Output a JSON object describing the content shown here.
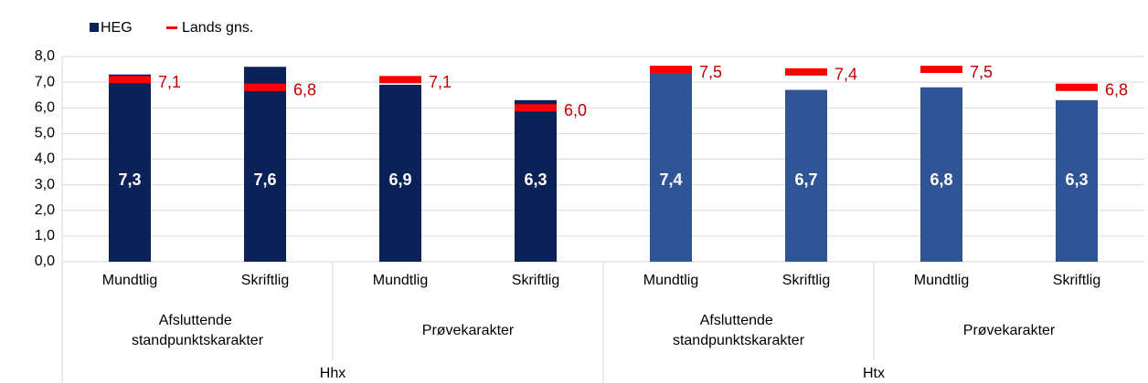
{
  "chart_data": {
    "type": "bar",
    "categories": [
      "Mundtlig",
      "Skriftlig",
      "Mundtlig",
      "Skriftlig",
      "Mundtlig",
      "Skriftlig",
      "Mundtlig",
      "Skriftlig"
    ],
    "category_groups": [
      [
        "Afsluttende standpunktskarakter",
        "Prøvekarakter",
        "Afsluttende standpunktskarakter",
        "Prøvekarakter"
      ],
      [
        "Hhx",
        "Htx"
      ]
    ],
    "series": [
      {
        "name": "HEG",
        "color": "#0b2259",
        "colors": [
          "#0b2259",
          "#0b2259",
          "#0b2259",
          "#0b2259",
          "#2f5597",
          "#2f5597",
          "#2f5597",
          "#2f5597"
        ],
        "values": [
          7.3,
          7.6,
          6.9,
          6.3,
          7.4,
          6.7,
          6.8,
          6.3
        ],
        "value_labels": [
          "7,3",
          "7,6",
          "6,9",
          "6,3",
          "7,4",
          "6,7",
          "6,8",
          "6,3"
        ]
      },
      {
        "name": "Lands gns.",
        "color": "#ff0000",
        "label_color": "#c00000",
        "values": [
          7.1,
          6.8,
          7.1,
          6.0,
          7.5,
          7.4,
          7.5,
          6.8
        ],
        "value_labels": [
          "7,1",
          "6,8",
          "7,1",
          "6,0",
          "7,5",
          "7,4",
          "7,5",
          "6,8"
        ]
      }
    ],
    "ylim": [
      0,
      8
    ],
    "yticks": [
      {
        "value": 0,
        "label": "0,0"
      },
      {
        "value": 1,
        "label": "1,0"
      },
      {
        "value": 2,
        "label": "2,0"
      },
      {
        "value": 3,
        "label": "3,0"
      },
      {
        "value": 4,
        "label": "4,0"
      },
      {
        "value": 5,
        "label": "5,0"
      },
      {
        "value": 6,
        "label": "6,0"
      },
      {
        "value": 7,
        "label": "7,0"
      },
      {
        "value": 8,
        "label": "8,0"
      }
    ],
    "grid": true,
    "legend": "top-left"
  }
}
